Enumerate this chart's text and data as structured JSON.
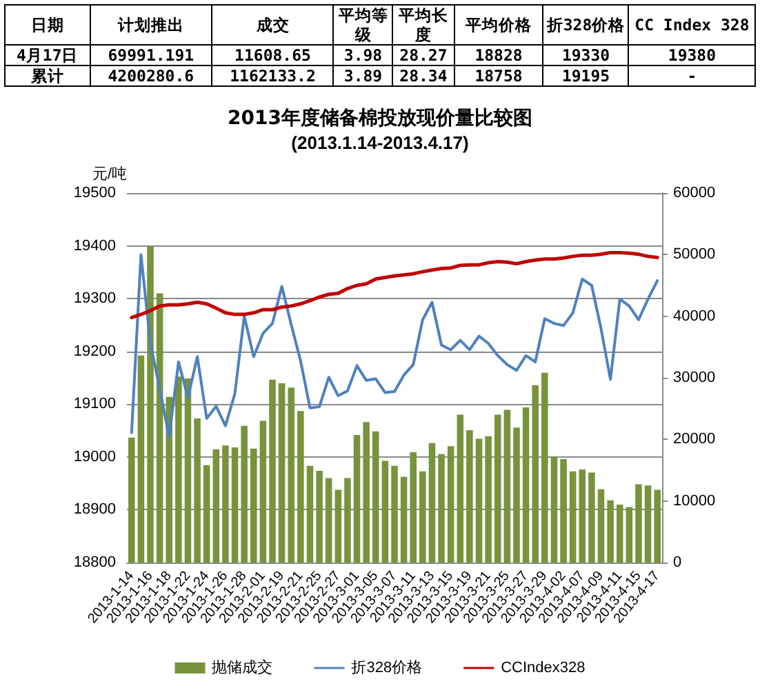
{
  "chart_data": {
    "type": "bar",
    "title": "2013年度储备棉投放现价量比较图",
    "subtitle": "(2013.1.14-2013.4.17)",
    "ylabel": "元/吨",
    "annotations": [
      "日期",
      "计划推出",
      "成交",
      "平均等级",
      "平均长度",
      "平均价格",
      "折328价格",
      "CC Index 328",
      "4月17日",
      "69991.191",
      "11608.65",
      "3.98",
      "28.27",
      "18828",
      "19330",
      "19380",
      "累计",
      "4200280.6",
      "1162133.2",
      "3.89",
      "28.34",
      "18758",
      "19195",
      "-"
    ],
    "categories": [
      "2013-1-14",
      null,
      "2013-1-16",
      null,
      "2013-1-18",
      null,
      "2013-1-22",
      null,
      "2013-1-24",
      null,
      "2013-1-26",
      null,
      "2013-1-28",
      null,
      "2013-2-01",
      null,
      "2013-2-19",
      null,
      "2013-2-21",
      null,
      "2013-2-25",
      null,
      "2013-2-27",
      null,
      "2013-3-01",
      null,
      "2013-3-05",
      null,
      "2013-3-07",
      null,
      "2013-3-11",
      null,
      "2013-3-13",
      null,
      "2013-3-15",
      null,
      "2013-3-19",
      null,
      "2013-3-21",
      null,
      "2013-3-25",
      null,
      "2013-3-27",
      null,
      "2013-3-29",
      null,
      "2013-4-02",
      null,
      "2013-4-07",
      null,
      "2013-4-09",
      null,
      "2013-4-11",
      null,
      "2013-4-15",
      null,
      "2013-4-17"
    ],
    "series": [
      {
        "name": "抛储成交",
        "axis": "y2",
        "color": "#77933c",
        "values": [
          20300,
          33600,
          51300,
          43700,
          26900,
          30200,
          29900,
          23400,
          15800,
          18400,
          19000,
          18700,
          22200,
          18500,
          23000,
          29700,
          29100,
          28400,
          24600,
          15700,
          14900,
          13700,
          11800,
          13700,
          20700,
          22800,
          21300,
          16500,
          15700,
          13900,
          17900,
          14800,
          19400,
          17600,
          18900,
          24000,
          21500,
          20100,
          20500,
          24000,
          24800,
          21900,
          25200,
          28800,
          30800,
          17200,
          16800,
          14800,
          15100,
          14600,
          11900,
          10100,
          9400,
          9000,
          12700,
          12500,
          11800
        ]
      },
      {
        "name": "折328价格",
        "type": "line",
        "color": "#4f81bd",
        "values": [
          19046,
          19383,
          19216,
          19129,
          19038,
          19180,
          19112,
          19190,
          19073,
          19096,
          19059,
          19120,
          19267,
          19190,
          19234,
          19253,
          19323,
          19251,
          19182,
          19093,
          19095,
          19151,
          19116,
          19125,
          19173,
          19145,
          19148,
          19122,
          19124,
          19155,
          19175,
          19260,
          19293,
          19212,
          19203,
          19221,
          19203,
          19229,
          19215,
          19192,
          19175,
          19164,
          19192,
          19180,
          19262,
          19253,
          19249,
          19273,
          19337,
          19325,
          19243,
          19147,
          19299,
          19286,
          19260,
          19299,
          19334
        ]
      },
      {
        "name": "CCIndex328",
        "type": "line",
        "color": "#c00000",
        "values": [
          19264,
          19270,
          19277,
          19286,
          19288,
          19288,
          19290,
          19293,
          19290,
          19282,
          19273,
          19270,
          19270,
          19273,
          19279,
          19279,
          19284,
          19286,
          19290,
          19296,
          19303,
          19308,
          19310,
          19319,
          19325,
          19328,
          19337,
          19340,
          19343,
          19345,
          19347,
          19351,
          19354,
          19357,
          19358,
          19363,
          19364,
          19364,
          19368,
          19370,
          19369,
          19366,
          19370,
          19373,
          19375,
          19375,
          19377,
          19380,
          19382,
          19382,
          19384,
          19387,
          19387,
          19386,
          19384,
          19380,
          19378
        ]
      }
    ],
    "ylim": [
      18800,
      19500
    ],
    "yticks": [
      18800,
      18900,
      19000,
      19100,
      19200,
      19300,
      19400,
      19500
    ],
    "y2lim": [
      0,
      60000
    ],
    "y2ticks": [
      0,
      10000,
      20000,
      30000,
      40000,
      50000,
      60000
    ],
    "grid": "y",
    "legend": "bottom",
    "marker": "none"
  }
}
